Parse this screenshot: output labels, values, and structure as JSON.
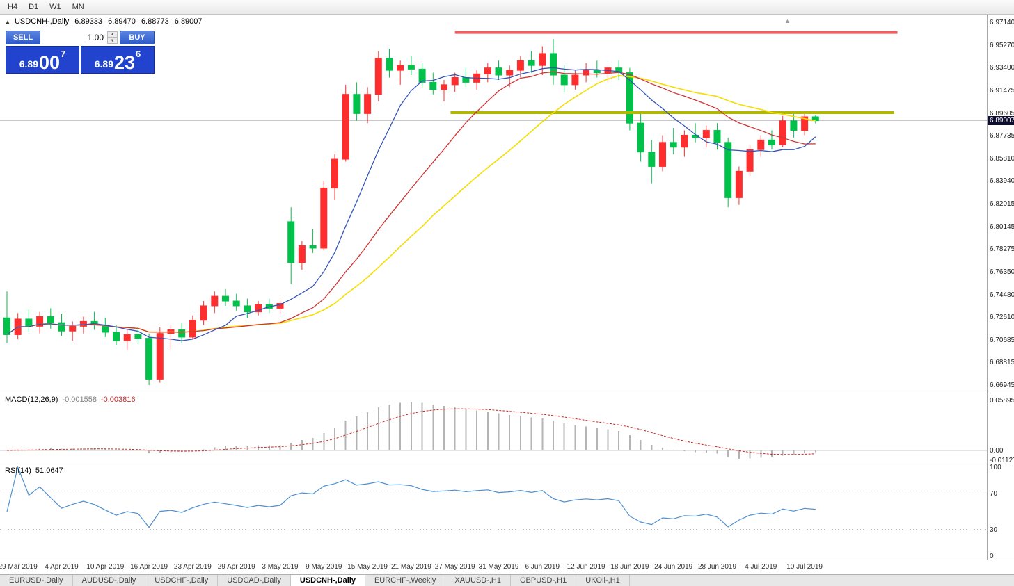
{
  "window": {
    "timeframes": [
      "H4",
      "D1",
      "W1",
      "MN"
    ]
  },
  "chart": {
    "collapse_icon": "▲",
    "shift_icon": "▲",
    "title": "USDCNH-,Daily",
    "ohlc": {
      "open": "6.89333",
      "high": "6.89470",
      "low": "6.88773",
      "close": "6.89007"
    },
    "current_price": "6.89007",
    "price_axis_labels": [
      "6.97140",
      "6.95270",
      "6.93400",
      "6.91475",
      "6.89605",
      "6.87735",
      "6.85810",
      "6.83940",
      "6.82015",
      "6.80145",
      "6.78275",
      "6.76350",
      "6.74480",
      "6.72610",
      "6.70685",
      "6.68815",
      "6.66945"
    ],
    "colors": {
      "bull": "#ff2e2e",
      "bear": "#00c24a",
      "ma_fast": "#3353b7",
      "ma_mid": "#cf3434",
      "ma_slow": "#f5dd00",
      "resistance": "#f25c5c",
      "support": "#b1b800",
      "price_line": "#c8c8c8"
    }
  },
  "trade_panel": {
    "sell_label": "SELL",
    "buy_label": "BUY",
    "volume": "1.00",
    "spinner_up_icon": "▲",
    "spinner_down_icon": "▼",
    "sell_price": {
      "figure": "6.89",
      "pips": "00",
      "point": "7"
    },
    "buy_price": {
      "figure": "6.89",
      "pips": "23",
      "point": "6"
    }
  },
  "chart_data": {
    "type": "candlestick",
    "symbol": "USDCNH",
    "period": "Daily",
    "ylim": [
      6.66945,
      6.9714
    ],
    "date_labels": [
      {
        "i": 1,
        "t": "29 Mar 2019"
      },
      {
        "i": 5,
        "t": "4 Apr 2019"
      },
      {
        "i": 9,
        "t": "10 Apr 2019"
      },
      {
        "i": 13,
        "t": "16 Apr 2019"
      },
      {
        "i": 17,
        "t": "23 Apr 2019"
      },
      {
        "i": 21,
        "t": "29 Apr 2019"
      },
      {
        "i": 25,
        "t": "3 May 2019"
      },
      {
        "i": 29,
        "t": "9 May 2019"
      },
      {
        "i": 33,
        "t": "15 May 2019"
      },
      {
        "i": 37,
        "t": "21 May 2019"
      },
      {
        "i": 41,
        "t": "27 May 2019"
      },
      {
        "i": 45,
        "t": "31 May 2019"
      },
      {
        "i": 49,
        "t": "6 Jun 2019"
      },
      {
        "i": 53,
        "t": "12 Jun 2019"
      },
      {
        "i": 57,
        "t": "18 Jun 2019"
      },
      {
        "i": 61,
        "t": "24 Jun 2019"
      },
      {
        "i": 65,
        "t": "28 Jun 2019"
      },
      {
        "i": 69,
        "t": "4 Jul 2019"
      },
      {
        "i": 73,
        "t": "10 Jul 2019"
      }
    ],
    "candles_ohlc": [
      [
        6.726,
        6.748,
        6.705,
        6.712
      ],
      [
        6.712,
        6.73,
        6.708,
        6.725
      ],
      [
        6.725,
        6.733,
        6.714,
        6.719
      ],
      [
        6.719,
        6.731,
        6.713,
        6.727
      ],
      [
        6.727,
        6.734,
        6.717,
        6.722
      ],
      [
        6.722,
        6.729,
        6.711,
        6.715
      ],
      [
        6.715,
        6.723,
        6.707,
        6.719
      ],
      [
        6.719,
        6.727,
        6.713,
        6.723
      ],
      [
        6.723,
        6.731,
        6.716,
        6.72
      ],
      [
        6.72,
        6.726,
        6.71,
        6.714
      ],
      [
        6.714,
        6.72,
        6.703,
        6.707
      ],
      [
        6.707,
        6.717,
        6.699,
        6.712
      ],
      [
        6.712,
        6.718,
        6.704,
        6.709
      ],
      [
        6.709,
        6.713,
        6.67,
        6.675
      ],
      [
        6.675,
        6.718,
        6.672,
        6.713
      ],
      [
        6.713,
        6.72,
        6.7,
        6.716
      ],
      [
        6.716,
        6.722,
        6.705,
        6.71
      ],
      [
        6.71,
        6.728,
        6.708,
        6.724
      ],
      [
        6.724,
        6.74,
        6.72,
        6.736
      ],
      [
        6.736,
        6.748,
        6.73,
        6.744
      ],
      [
        6.744,
        6.75,
        6.736,
        6.74
      ],
      [
        6.74,
        6.746,
        6.732,
        6.736
      ],
      [
        6.736,
        6.742,
        6.726,
        6.731
      ],
      [
        6.731,
        6.74,
        6.728,
        6.737
      ],
      [
        6.737,
        6.742,
        6.73,
        6.734
      ],
      [
        6.734,
        6.741,
        6.729,
        6.738
      ],
      [
        6.806,
        6.818,
        6.754,
        6.772
      ],
      [
        6.772,
        6.79,
        6.766,
        6.786
      ],
      [
        6.786,
        6.8,
        6.78,
        6.784
      ],
      [
        6.784,
        6.84,
        6.782,
        6.834
      ],
      [
        6.834,
        6.862,
        6.824,
        6.858
      ],
      [
        6.858,
        6.92,
        6.856,
        6.912
      ],
      [
        6.912,
        6.922,
        6.89,
        6.896
      ],
      [
        6.896,
        6.918,
        6.888,
        6.912
      ],
      [
        6.912,
        6.948,
        6.906,
        6.942
      ],
      [
        6.942,
        6.95,
        6.926,
        6.932
      ],
      [
        6.932,
        6.94,
        6.92,
        6.936
      ],
      [
        6.936,
        6.944,
        6.928,
        6.933
      ],
      [
        6.933,
        6.938,
        6.918,
        6.922
      ],
      [
        6.922,
        6.93,
        6.912,
        6.916
      ],
      [
        6.916,
        6.924,
        6.906,
        6.92
      ],
      [
        6.92,
        6.93,
        6.914,
        6.926
      ],
      [
        6.926,
        6.934,
        6.918,
        6.922
      ],
      [
        6.922,
        6.932,
        6.916,
        6.929
      ],
      [
        6.929,
        6.938,
        6.922,
        6.934
      ],
      [
        6.934,
        6.94,
        6.924,
        6.928
      ],
      [
        6.928,
        6.936,
        6.918,
        6.932
      ],
      [
        6.932,
        6.944,
        6.926,
        6.94
      ],
      [
        6.94,
        6.948,
        6.93,
        6.936
      ],
      [
        6.936,
        6.952,
        6.928,
        6.946
      ],
      [
        6.946,
        6.958,
        6.92,
        6.928
      ],
      [
        6.928,
        6.936,
        6.914,
        6.92
      ],
      [
        6.92,
        6.932,
        6.916,
        6.928
      ],
      [
        6.928,
        6.938,
        6.922,
        6.932
      ],
      [
        6.932,
        6.94,
        6.926,
        6.93
      ],
      [
        6.93,
        6.936,
        6.922,
        6.934
      ],
      [
        6.934,
        6.94,
        6.924,
        6.93
      ],
      [
        6.93,
        6.934,
        6.882,
        6.888
      ],
      [
        6.888,
        6.896,
        6.856,
        6.864
      ],
      [
        6.864,
        6.874,
        6.838,
        6.852
      ],
      [
        6.852,
        6.878,
        6.848,
        6.872
      ],
      [
        6.872,
        6.884,
        6.862,
        6.868
      ],
      [
        6.868,
        6.882,
        6.86,
        6.878
      ],
      [
        6.878,
        6.888,
        6.872,
        6.876
      ],
      [
        6.876,
        6.886,
        6.868,
        6.882
      ],
      [
        6.882,
        6.888,
        6.866,
        6.872
      ],
      [
        6.872,
        6.876,
        6.818,
        6.826
      ],
      [
        6.826,
        6.852,
        6.82,
        6.848
      ],
      [
        6.848,
        6.87,
        6.844,
        6.866
      ],
      [
        6.866,
        6.878,
        6.86,
        6.874
      ],
      [
        6.874,
        6.882,
        6.866,
        6.87
      ],
      [
        6.87,
        6.894,
        6.868,
        6.89
      ],
      [
        6.89,
        6.896,
        6.876,
        6.882
      ],
      [
        6.882,
        6.896,
        6.878,
        6.8933
      ],
      [
        6.89333,
        6.8947,
        6.88773,
        6.89007
      ]
    ],
    "overlays": [
      {
        "kind": "sma",
        "period": 8,
        "color_key": "ma_fast"
      },
      {
        "kind": "sma",
        "period": 17,
        "color_key": "ma_mid"
      },
      {
        "kind": "sma",
        "period": 26,
        "color_key": "ma_slow"
      },
      {
        "kind": "hline",
        "price": 6.9635,
        "from_i": 41,
        "to_i": 81.5,
        "color_key": "resistance"
      },
      {
        "kind": "hline",
        "price": 6.8968,
        "from_i": 40.6,
        "to_i": 81.2,
        "color_key": "support"
      }
    ]
  },
  "macd_panel": {
    "name": "MACD(12,26,9)",
    "value_main": "-0.001558",
    "value_signal": "-0.003816",
    "params": {
      "fast": 12,
      "slow": 26,
      "signal": 9
    },
    "axis_labels": {
      "max": "0.05895",
      "zero": "0.00",
      "min": "-0.01127"
    },
    "colors": {
      "histogram": "#b4b4b4",
      "signal": "#c62828"
    }
  },
  "rsi_panel": {
    "name": "RSI(14)",
    "value": "51.0647",
    "period": 14,
    "levels": [
      70,
      30
    ],
    "axis_labels": [
      "100",
      "70",
      "30",
      "0"
    ],
    "color": "#4f8fd0"
  },
  "tabs": [
    {
      "label": "EURUSD-,Daily",
      "active": false
    },
    {
      "label": "AUDUSD-,Daily",
      "active": false
    },
    {
      "label": "USDCHF-,Daily",
      "active": false
    },
    {
      "label": "USDCAD-,Daily",
      "active": false
    },
    {
      "label": "USDCNH-,Daily",
      "active": true
    },
    {
      "label": "EURCHF-,Weekly",
      "active": false
    },
    {
      "label": "XAUUSD-,H1",
      "active": false
    },
    {
      "label": "GBPUSD-,H1",
      "active": false
    },
    {
      "label": "UKOil-,H1",
      "active": false
    }
  ]
}
